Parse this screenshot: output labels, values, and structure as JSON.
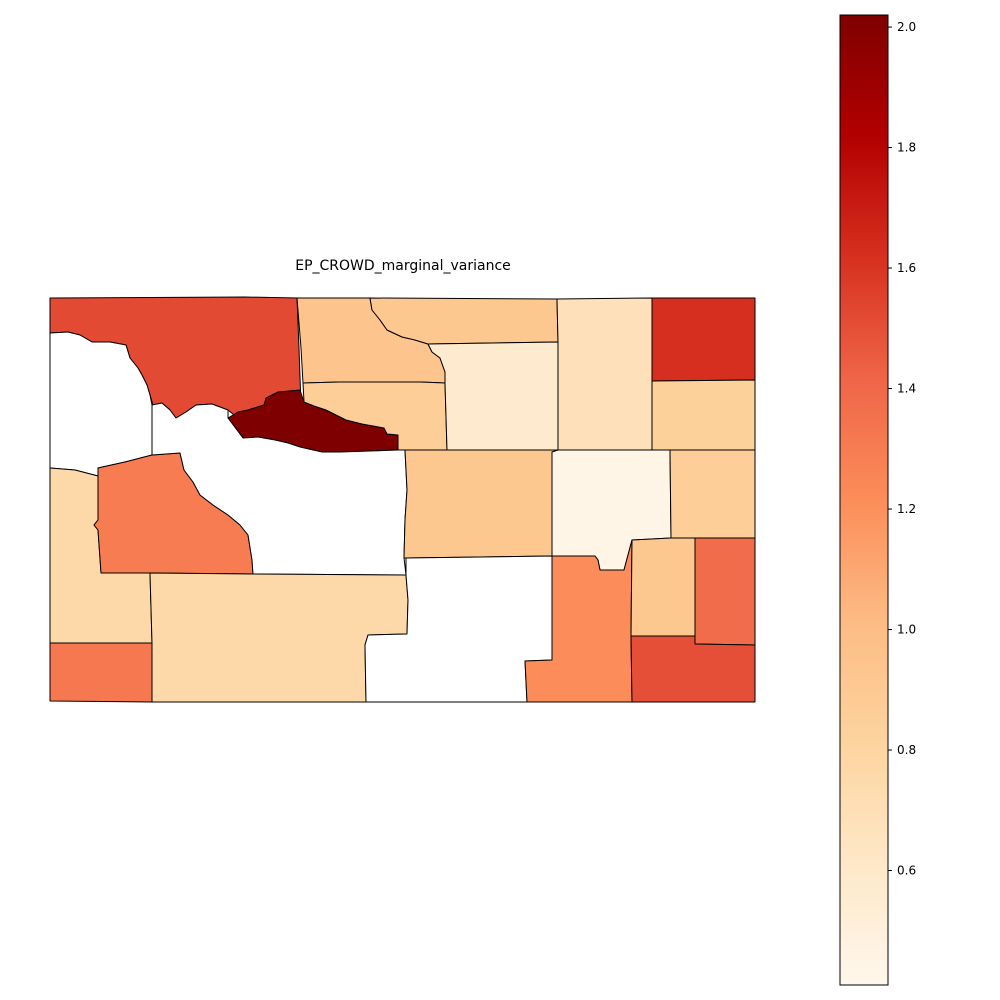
{
  "title": "EP_CROWD_marginal_variance",
  "colormap": {
    "name": "OrRd",
    "min": 0.41,
    "max": 2.02,
    "stops": [
      "#fff7ec",
      "#fee8c8",
      "#fdd49e",
      "#fdbb84",
      "#fc8d59",
      "#ef6548",
      "#d7301f",
      "#b30000",
      "#7f0000"
    ]
  },
  "colorbar": {
    "ticks": [
      0.6,
      0.8,
      1.0,
      1.2,
      1.4,
      1.6,
      1.8,
      2.0
    ],
    "tick_labels": [
      "0.6",
      "0.8",
      "1.0",
      "1.2",
      "1.4",
      "1.6",
      "1.8",
      "2.0"
    ]
  },
  "regions": [
    {
      "id": "nw-top",
      "value": 1.52
    },
    {
      "id": "north-center-left",
      "value": 0.94
    },
    {
      "id": "north-center-right",
      "value": 0.92
    },
    {
      "id": "northeast-column",
      "value": 0.68
    },
    {
      "id": "northeast-corner",
      "value": 1.62
    },
    {
      "id": "west-upper",
      "value": null
    },
    {
      "id": "central-strip",
      "value": 2.02
    },
    {
      "id": "mid-band",
      "value": 0.86
    },
    {
      "id": "north-mid-block",
      "value": 0.58
    },
    {
      "id": "east-upper",
      "value": 0.84
    },
    {
      "id": "west-middle",
      "value": 0.76
    },
    {
      "id": "west-center",
      "value": 1.3
    },
    {
      "id": "central-large",
      "value": null
    },
    {
      "id": "center-block",
      "value": 0.92
    },
    {
      "id": "center-east",
      "value": 0.44
    },
    {
      "id": "east-middle",
      "value": 0.86
    },
    {
      "id": "southwest-corner",
      "value": 1.32
    },
    {
      "id": "south-large",
      "value": 0.76
    },
    {
      "id": "south-center",
      "value": null
    },
    {
      "id": "south-east-center",
      "value": 1.22
    },
    {
      "id": "southeast-upper",
      "value": 0.92
    },
    {
      "id": "east-lower",
      "value": 1.38
    },
    {
      "id": "southeast-corner",
      "value": 1.5
    }
  ]
}
